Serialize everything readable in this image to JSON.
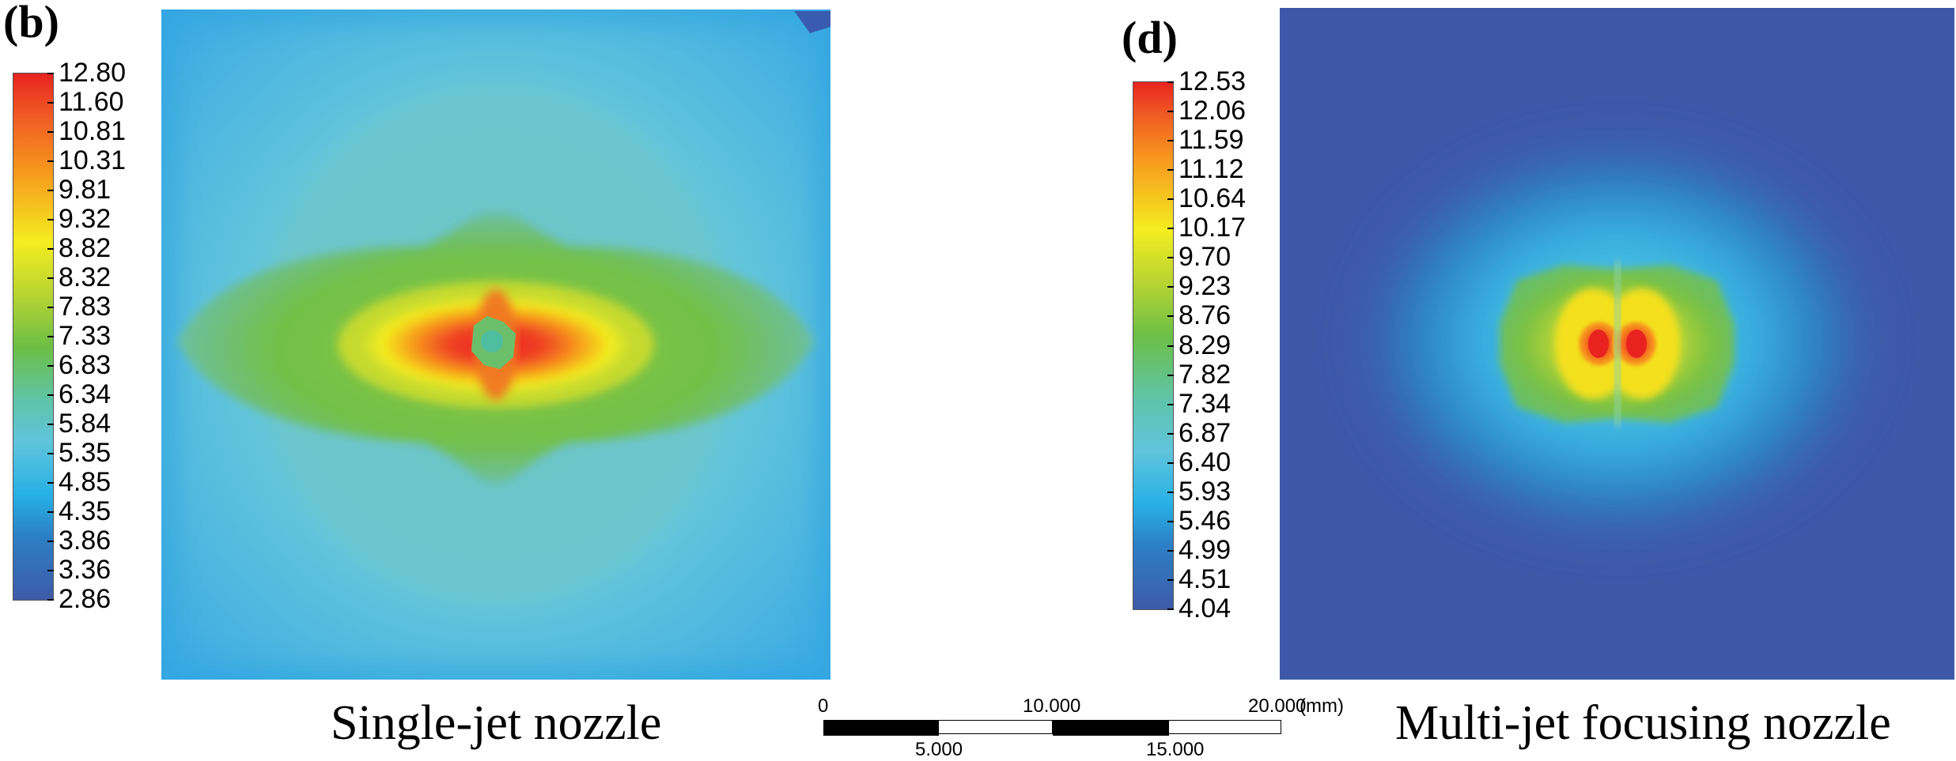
{
  "panel_b": {
    "label": "(b)",
    "caption": "Single-jet nozzle",
    "colorbar_ticks": [
      "12.80",
      "11.60",
      "10.81",
      "10.31",
      "9.81",
      "9.32",
      "8.82",
      "8.32",
      "7.83",
      "7.33",
      "6.83",
      "6.34",
      "5.84",
      "5.35",
      "4.85",
      "4.35",
      "3.86",
      "3.36",
      "2.86"
    ]
  },
  "panel_d": {
    "label": "(d)",
    "caption": "Multi-jet focusing nozzle",
    "colorbar_ticks": [
      "12.53",
      "12.06",
      "11.59",
      "11.12",
      "10.64",
      "10.17",
      "9.70",
      "9.23",
      "8.76",
      "8.29",
      "7.82",
      "7.34",
      "6.87",
      "6.40",
      "5.93",
      "5.46",
      "4.99",
      "4.51",
      "4.04"
    ]
  },
  "scale_bar": {
    "top_labels": [
      "0",
      "10.000",
      "20.000"
    ],
    "bottom_labels": [
      "5.000",
      "15.000"
    ],
    "unit": "(mm)"
  },
  "colors": {
    "red": "#e8231f",
    "orange": "#f7941d",
    "yellow": "#f4ed1f",
    "green": "#6cbf45",
    "cyan_light": "#5fc4dc",
    "cyan": "#27b1e6",
    "blue": "#3f5aa8",
    "dark_blue": "#2f3e90"
  }
}
